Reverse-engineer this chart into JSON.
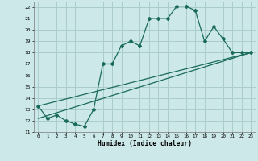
{
  "bg_color": "#cce8e8",
  "grid_color": "#aacccc",
  "line_color": "#1a6b5a",
  "xlabel": "Humidex (Indice chaleur)",
  "ylim": [
    11,
    22.5
  ],
  "xlim": [
    -0.5,
    23.5
  ],
  "yticks": [
    11,
    12,
    13,
    14,
    15,
    16,
    17,
    18,
    19,
    20,
    21,
    22
  ],
  "xticks": [
    0,
    1,
    2,
    3,
    4,
    5,
    6,
    7,
    8,
    9,
    10,
    11,
    12,
    13,
    14,
    15,
    16,
    17,
    18,
    19,
    20,
    21,
    22,
    23
  ],
  "curve1_x": [
    0,
    1,
    2,
    3,
    4,
    5,
    6,
    7,
    8,
    9,
    10,
    11,
    12,
    13,
    14,
    15,
    16,
    17,
    18,
    19,
    20,
    21,
    22,
    23
  ],
  "curve1_y": [
    13.3,
    12.2,
    12.5,
    12.0,
    11.7,
    11.5,
    13.0,
    17.0,
    17.0,
    18.6,
    19.0,
    18.6,
    21.0,
    21.0,
    21.0,
    22.1,
    22.1,
    21.7,
    19.0,
    20.3,
    19.2,
    18.0,
    18.0,
    18.0
  ],
  "curve2_x": [
    0,
    23
  ],
  "curve2_y": [
    12.2,
    18.0
  ],
  "curve3_x": [
    0,
    23
  ],
  "curve3_y": [
    13.3,
    18.0
  ]
}
